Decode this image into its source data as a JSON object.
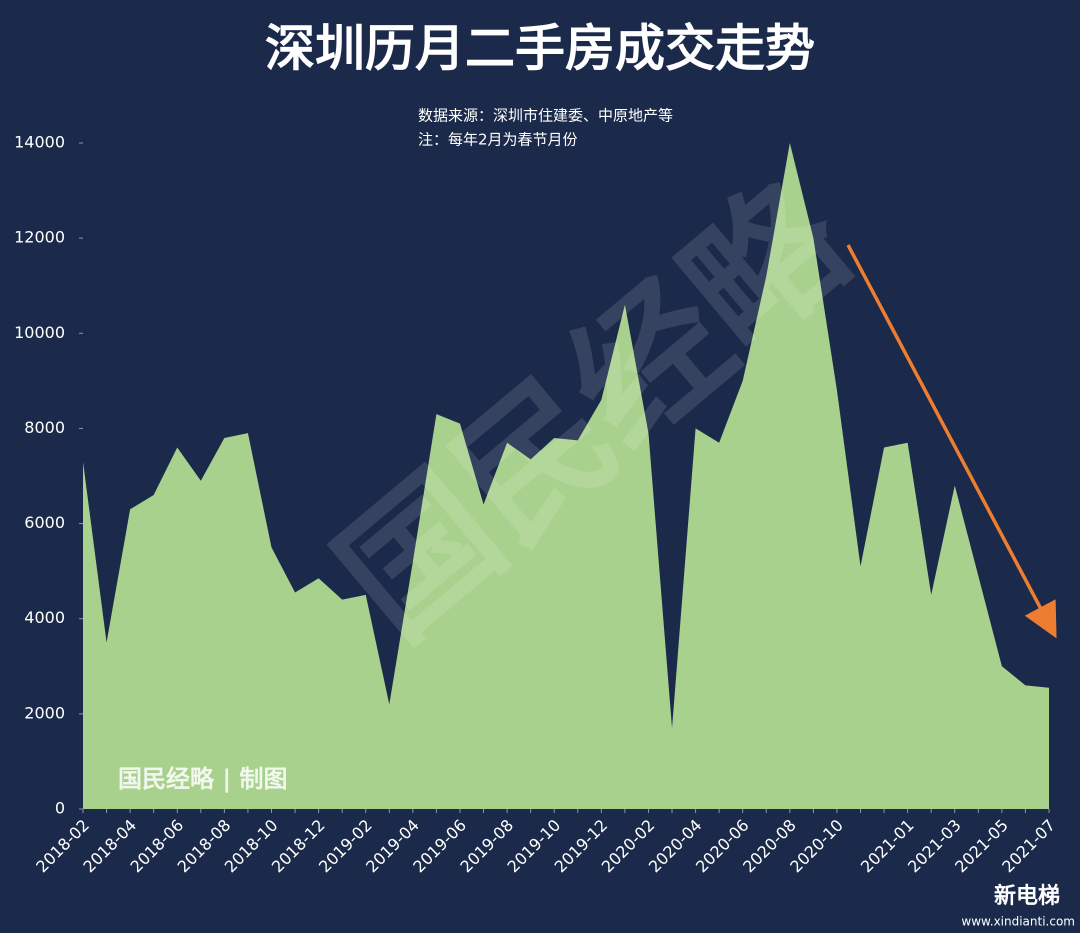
{
  "chart_data": {
    "type": "area",
    "title": "深圳历月二手房成交走势",
    "subtitle": [
      "数据来源：深圳市住建委、中原地产等",
      "注：每年2月为春节月份"
    ],
    "categories": [
      "2018-02",
      null,
      "2018-04",
      null,
      "2018-06",
      null,
      "2018-08",
      null,
      "2018-10",
      null,
      "2018-12",
      null,
      "2019-02",
      null,
      "2019-04",
      null,
      "2019-06",
      null,
      "2019-08",
      null,
      "2019-10",
      null,
      "2019-12",
      null,
      "2020-02",
      null,
      "2020-04",
      null,
      "2020-06",
      null,
      "2020-08",
      null,
      "2020-10",
      null,
      null,
      "2021-01",
      null,
      "2021-03",
      null,
      "2021-05",
      null,
      "2021-07"
    ],
    "values": [
      7300,
      3500,
      6300,
      6600,
      7600,
      6900,
      7800,
      7900,
      5500,
      4550,
      4850,
      4400,
      4500,
      2200,
      5200,
      8300,
      8100,
      6400,
      7700,
      7350,
      7800,
      7750,
      8600,
      10600,
      7900,
      1700,
      8000,
      7700,
      9000,
      11200,
      14000,
      12000,
      8800,
      5100,
      7600,
      7700,
      4500,
      6800,
      4900,
      3000,
      2600,
      2550
    ],
    "color": "#a9d18e",
    "ylim": [
      0,
      14000
    ],
    "yticks": [
      0,
      2000,
      4000,
      6000,
      8000,
      10000,
      12000,
      14000
    ],
    "grid": false,
    "watermark": "国民经略",
    "credit": "国民经略 | 制图",
    "logo": "新电梯",
    "logo_url": "www.xindianti.com"
  }
}
